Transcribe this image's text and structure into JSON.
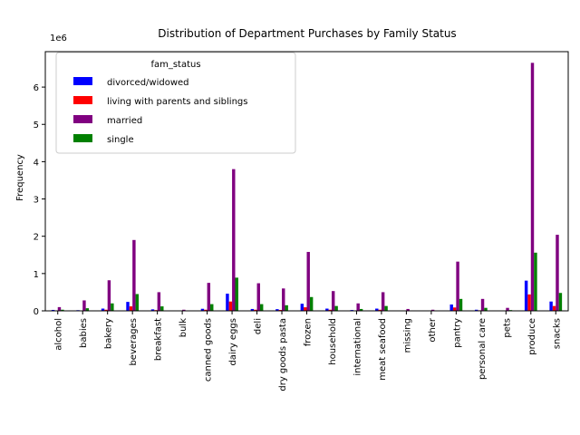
{
  "chart_data": {
    "type": "bar",
    "title": "Distribution of Department Purchases by Family Status",
    "xlabel": "",
    "ylabel": "Frequency",
    "y_scale_label": "1e6",
    "ylim": [
      0,
      6950000
    ],
    "y_ticks": [
      0,
      1,
      2,
      3,
      4,
      5,
      6
    ],
    "y_ticks_multiplier": 1000000,
    "grid": false,
    "legend": {
      "title": "fam_status",
      "placement": "top-left"
    },
    "categories": [
      "alcohol",
      "babies",
      "bakery",
      "beverages",
      "breakfast",
      "bulk",
      "canned goods",
      "dairy eggs",
      "deli",
      "dry goods pasta",
      "frozen",
      "household",
      "international",
      "meat seafood",
      "missing",
      "other",
      "pantry",
      "personal care",
      "pets",
      "produce",
      "snacks"
    ],
    "series": [
      {
        "name": "divorced/widowed",
        "color": "#0000ff",
        "values": [
          25000,
          18000,
          60000,
          240000,
          40000,
          3000,
          55000,
          460000,
          50000,
          45000,
          190000,
          60000,
          22000,
          60000,
          5000,
          3000,
          170000,
          30000,
          8000,
          810000,
          250000
        ]
      },
      {
        "name": "living with parents and siblings",
        "color": "#ff0000",
        "values": [
          12000,
          10000,
          30000,
          120000,
          20000,
          2000,
          30000,
          250000,
          30000,
          25000,
          95000,
          30000,
          11000,
          30000,
          3000,
          2000,
          90000,
          15000,
          5000,
          440000,
          130000
        ]
      },
      {
        "name": "married",
        "color": "#800080",
        "values": [
          100000,
          280000,
          820000,
          1900000,
          500000,
          30000,
          750000,
          3800000,
          740000,
          600000,
          1580000,
          530000,
          200000,
          500000,
          50000,
          30000,
          1320000,
          320000,
          80000,
          6650000,
          2040000
        ]
      },
      {
        "name": "single",
        "color": "#008000",
        "values": [
          30000,
          70000,
          200000,
          450000,
          120000,
          8000,
          180000,
          890000,
          180000,
          150000,
          370000,
          130000,
          50000,
          130000,
          12000,
          8000,
          320000,
          80000,
          20000,
          1560000,
          480000
        ]
      }
    ]
  }
}
